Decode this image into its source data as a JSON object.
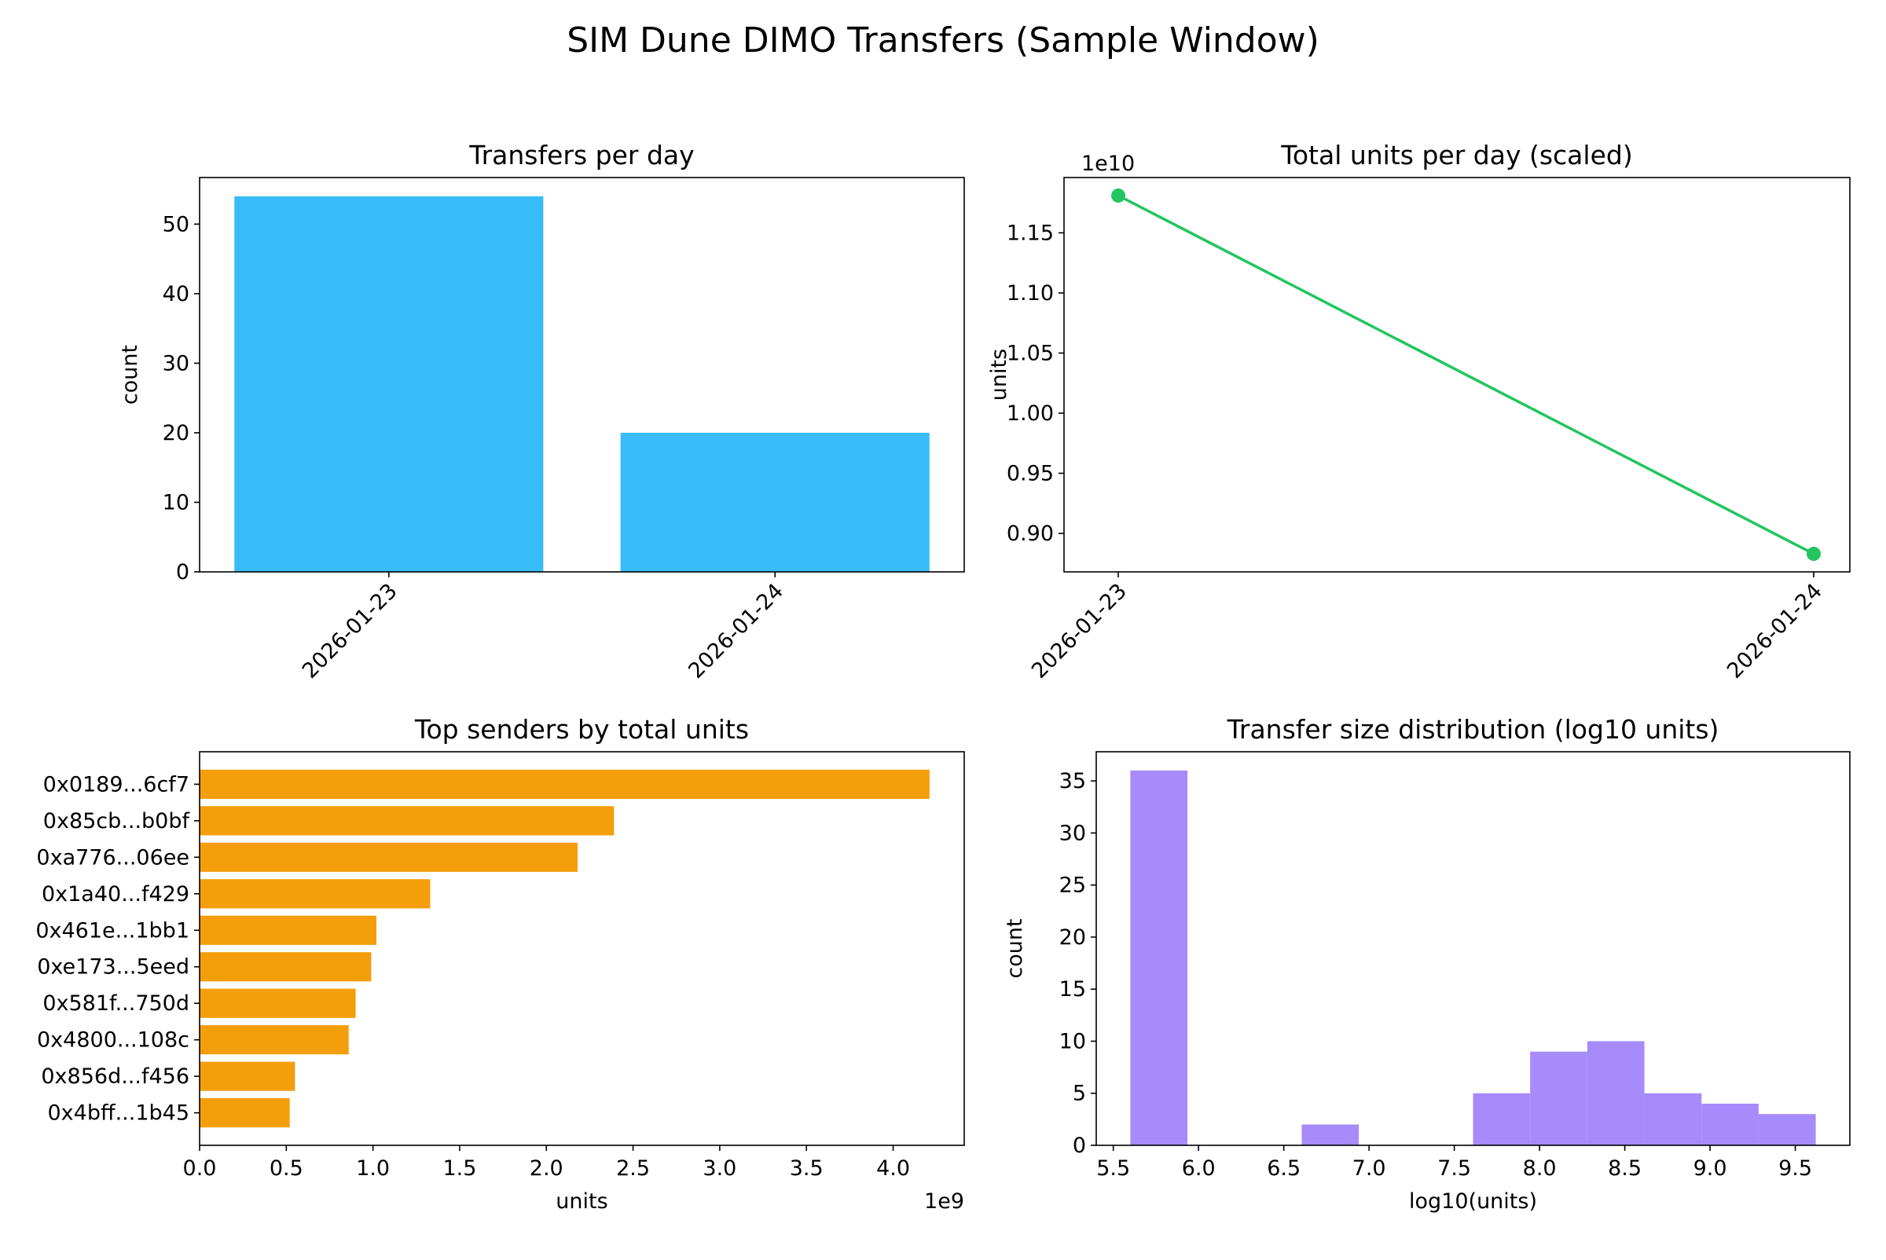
{
  "suptitle": "SIM Dune DIMO Transfers (Sample Window)",
  "chart_data": [
    {
      "type": "bar",
      "title": "Transfers per day",
      "xlabel": "",
      "ylabel": "count",
      "categories": [
        "2026-01-23",
        "2026-01-24"
      ],
      "values": [
        54,
        20
      ],
      "ylim": [
        0,
        56.7
      ],
      "yticks": [
        0,
        10,
        20,
        30,
        40,
        50
      ],
      "color": "#38bdf8",
      "grid": false
    },
    {
      "type": "line",
      "title": "Total units per day (scaled)",
      "xlabel": "",
      "ylabel": "units",
      "offset_text": "1e10",
      "x": [
        "2026-01-23",
        "2026-01-24"
      ],
      "y": [
        1.181,
        0.883
      ],
      "ylim": [
        0.868,
        1.196
      ],
      "yticks": [
        "0.90",
        "0.95",
        "1.00",
        "1.05",
        "1.10",
        "1.15"
      ],
      "color": "#22c55e",
      "marker": "circle",
      "grid": false
    },
    {
      "type": "bar",
      "orientation": "horizontal",
      "title": "Top senders by total units",
      "xlabel": "units",
      "ylabel": "",
      "offset_text": "1e9",
      "categories": [
        "0x0189...6cf7",
        "0x85cb...b0bf",
        "0xa776...06ee",
        "0x1a40...f429",
        "0x461e...1bb1",
        "0xe173...5eed",
        "0x581f...750d",
        "0x4800...108c",
        "0x856d...f456",
        "0x4bff...1b45"
      ],
      "values": [
        4.21,
        2.39,
        2.18,
        1.33,
        1.02,
        0.99,
        0.9,
        0.86,
        0.55,
        0.52
      ],
      "xlim": [
        0,
        4.41
      ],
      "xticks": [
        "0.0",
        "0.5",
        "1.0",
        "1.5",
        "2.0",
        "2.5",
        "3.0",
        "3.5",
        "4.0"
      ],
      "color": "#f59e0b",
      "grid": false
    },
    {
      "type": "bar",
      "subtype": "histogram",
      "title": "Transfer size distribution (log10 units)",
      "xlabel": "log10(units)",
      "ylabel": "count",
      "bin_range": [
        5.6,
        9.62
      ],
      "counts": [
        36,
        0,
        0,
        2,
        0,
        0,
        5,
        9,
        10,
        5,
        4,
        3
      ],
      "xlim": [
        5.4,
        9.82
      ],
      "ylim": [
        0,
        37.8
      ],
      "xticks": [
        "5.5",
        "6.0",
        "6.5",
        "7.0",
        "7.5",
        "8.0",
        "8.5",
        "9.0",
        "9.5"
      ],
      "yticks": [
        0,
        5,
        10,
        15,
        20,
        25,
        30,
        35
      ],
      "color": "#a78bfa",
      "grid": false
    }
  ]
}
